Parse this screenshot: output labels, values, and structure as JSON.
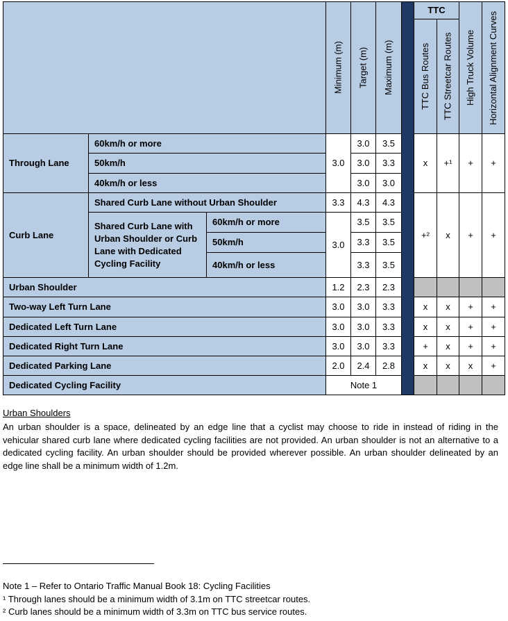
{
  "table": {
    "header": {
      "measures": [
        "Minimum (m)",
        "Target (m)",
        "Maximum (m)"
      ],
      "group": "TTC",
      "flags": [
        "TTC Bus Routes",
        "TTC Streetcar Routes",
        "High Truck Volume",
        "Horizontal Alignment Curves"
      ]
    },
    "rows": [
      {
        "label": "Through Lane",
        "speeds": [
          "60km/h or more",
          "50km/h",
          "40km/h or less"
        ],
        "minimum": "3.0",
        "target": [
          "3.0",
          "3.0",
          "3.0"
        ],
        "maximum": [
          "3.5",
          "3.3",
          "3.0"
        ],
        "flags": [
          "x",
          "+¹",
          "+",
          "+"
        ]
      },
      {
        "label": "Curb Lane",
        "shared_without": {
          "label": "Shared Curb Lane without Urban Shoulder",
          "minimum": "3.3",
          "target": "4.3",
          "maximum": "4.3"
        },
        "shared_with": {
          "label": "Shared Curb Lane with Urban Shoulder  or Curb Lane with Dedicated Cycling Facility",
          "speeds": [
            "60km/h or more",
            "50km/h",
            "40km/h or less"
          ],
          "minimum": "3.0",
          "target": [
            "3.5",
            "3.3",
            "3.3"
          ],
          "maximum": [
            "3.5",
            "3.5",
            "3.5"
          ]
        },
        "flags": [
          "+²",
          "x",
          "+",
          "+"
        ]
      },
      {
        "label": "Urban Shoulder",
        "minimum": "1.2",
        "target": "2.3",
        "maximum": "2.3"
      },
      {
        "label": "Two-way Left Turn Lane",
        "minimum": "3.0",
        "target": "3.0",
        "maximum": "3.3",
        "flags": [
          "x",
          "x",
          "+",
          "+"
        ]
      },
      {
        "label": "Dedicated Left Turn Lane",
        "minimum": "3.0",
        "target": "3.0",
        "maximum": "3.3",
        "flags": [
          "x",
          "x",
          "+",
          "+"
        ]
      },
      {
        "label": "Dedicated Right Turn Lane",
        "minimum": "3.0",
        "target": "3.0",
        "maximum": "3.3",
        "flags": [
          "+",
          "x",
          "+",
          "+"
        ]
      },
      {
        "label": "Dedicated Parking Lane",
        "minimum": "2.0",
        "target": "2.4",
        "maximum": "2.8",
        "flags": [
          "x",
          "x",
          "x",
          "+"
        ]
      },
      {
        "label": "Dedicated Cycling Facility",
        "note": "Note 1"
      }
    ]
  },
  "section": {
    "heading": "Urban Shoulders",
    "paragraph": "An urban shoulder is a space, delineated by an edge line that a cyclist may choose to ride in instead of riding in the vehicular shared curb lane where dedicated cycling facilities are not provided. An urban shoulder is not an alternative to a dedicated cycling facility. An urban shoulder should be provided wherever possible. An urban shoulder delineated by an edge line shall be a minimum width of 1.2m."
  },
  "footnotes": [
    "Note 1 – Refer to Ontario Traffic Manual Book 18: Cycling Facilities",
    "¹ Through lanes should be a minimum width of 3.1m on TTC streetcar routes.",
    "² Curb lanes should be a minimum width of 3.3m on TTC bus service routes."
  ]
}
